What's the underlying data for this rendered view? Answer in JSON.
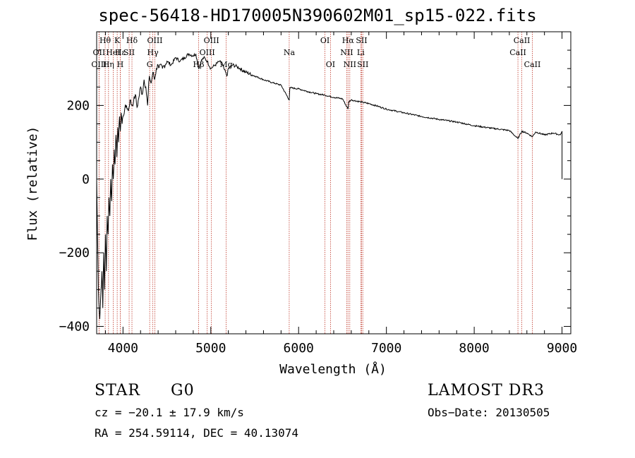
{
  "chart_data": {
    "type": "line",
    "title": "spec-56418-HD170005N390602M01_sp15-022.fits",
    "xlabel": "Wavelength (Å)",
    "ylabel": "Flux (relative)",
    "xlim": [
      3700,
      9100
    ],
    "ylim": [
      -420,
      400
    ],
    "xticks": [
      4000,
      5000,
      6000,
      7000,
      8000,
      9000
    ],
    "yticks": [
      -400,
      -200,
      0,
      200
    ],
    "grid": false,
    "series": [
      {
        "name": "Flux",
        "x": [
          3700,
          3710,
          3720,
          3735,
          3750,
          3760,
          3770,
          3780,
          3790,
          3800,
          3810,
          3820,
          3830,
          3840,
          3850,
          3860,
          3870,
          3880,
          3890,
          3900,
          3910,
          3920,
          3930,
          3940,
          3950,
          3960,
          3970,
          3980,
          3990,
          4000,
          4020,
          4040,
          4060,
          4080,
          4100,
          4120,
          4140,
          4160,
          4180,
          4200,
          4220,
          4240,
          4260,
          4280,
          4300,
          4320,
          4340,
          4360,
          4380,
          4400,
          4450,
          4500,
          4550,
          4600,
          4650,
          4700,
          4750,
          4800,
          4830,
          4861,
          4890,
          4920,
          4960,
          5000,
          5050,
          5100,
          5150,
          5183,
          5200,
          5250,
          5300,
          5400,
          5500,
          5600,
          5700,
          5800,
          5893,
          5900,
          6000,
          6100,
          6200,
          6300,
          6400,
          6500,
          6563,
          6570,
          6600,
          6700,
          6800,
          6900,
          7000,
          7200,
          7400,
          7600,
          7800,
          8000,
          8200,
          8400,
          8498,
          8542,
          8600,
          8662,
          8700,
          8800,
          8900,
          8980,
          9000,
          9000
        ],
        "y": [
          0,
          -150,
          -300,
          -380,
          -300,
          -250,
          -350,
          -200,
          -300,
          -150,
          -250,
          -100,
          -150,
          -50,
          -100,
          0,
          -60,
          40,
          0,
          80,
          40,
          120,
          60,
          140,
          100,
          170,
          130,
          180,
          150,
          170,
          190,
          200,
          185,
          215,
          200,
          210,
          230,
          195,
          220,
          250,
          230,
          270,
          250,
          200,
          280,
          260,
          290,
          270,
          300,
          310,
          300,
          320,
          310,
          330,
          320,
          330,
          340,
          335,
          340,
          300,
          320,
          330,
          320,
          300,
          310,
          320,
          300,
          280,
          300,
          310,
          305,
          290,
          280,
          270,
          262,
          255,
          215,
          248,
          245,
          238,
          232,
          228,
          222,
          218,
          190,
          210,
          215,
          210,
          205,
          198,
          190,
          180,
          170,
          162,
          155,
          145,
          138,
          132,
          110,
          130,
          125,
          115,
          128,
          120,
          125,
          120,
          130,
          0
        ]
      }
    ],
    "lines": [
      {
        "name": "Hθ",
        "wl": 3797,
        "row": 0
      },
      {
        "name": "OII",
        "wl": 3727,
        "row": 1
      },
      {
        "name": "OIII",
        "wl": 3727,
        "row": 2
      },
      {
        "name": "K",
        "wl": 3934,
        "row": 0
      },
      {
        "name": "Hε",
        "wl": 3970,
        "row": 1
      },
      {
        "name": "HeI",
        "wl": 3889,
        "row": 1
      },
      {
        "name": "Hη",
        "wl": 3835,
        "row": 2
      },
      {
        "name": "H",
        "wl": 3969,
        "row": 2
      },
      {
        "name": "Hδ",
        "wl": 4102,
        "row": 0
      },
      {
        "name": "SII",
        "wl": 4070,
        "row": 1
      },
      {
        "name": "OIII",
        "wl": 4363,
        "row": 0
      },
      {
        "name": "Hγ",
        "wl": 4340,
        "row": 1
      },
      {
        "name": "G",
        "wl": 4304,
        "row": 2
      },
      {
        "name": "Hβ",
        "wl": 4861,
        "row": 2
      },
      {
        "name": "OIII",
        "wl": 5007,
        "row": 0
      },
      {
        "name": "OIII",
        "wl": 4959,
        "row": 1
      },
      {
        "name": "Mg",
        "wl": 5175,
        "row": 2
      },
      {
        "name": "Na",
        "wl": 5893,
        "row": 1
      },
      {
        "name": "OI",
        "wl": 6300,
        "row": 0
      },
      {
        "name": "OI",
        "wl": 6363,
        "row": 2
      },
      {
        "name": "Hα",
        "wl": 6563,
        "row": 0
      },
      {
        "name": "SII",
        "wl": 6717,
        "row": 0
      },
      {
        "name": "NII",
        "wl": 6548,
        "row": 1
      },
      {
        "name": "Li",
        "wl": 6708,
        "row": 1
      },
      {
        "name": "NII",
        "wl": 6583,
        "row": 2
      },
      {
        "name": "SII",
        "wl": 6731,
        "row": 2
      },
      {
        "name": "CaII",
        "wl": 8542,
        "row": 0
      },
      {
        "name": "CaII",
        "wl": 8498,
        "row": 1
      },
      {
        "name": "CaII",
        "wl": 8662,
        "row": 2
      }
    ]
  },
  "footer": {
    "class_label": "STAR",
    "subclass": "G0",
    "survey": "LAMOST DR3",
    "cz": "cz = −20.1 ± 17.9 km/s",
    "obs_date": "Obs−Date: 20130505",
    "coords": "RA = 254.59114, DEC =  40.13074"
  }
}
